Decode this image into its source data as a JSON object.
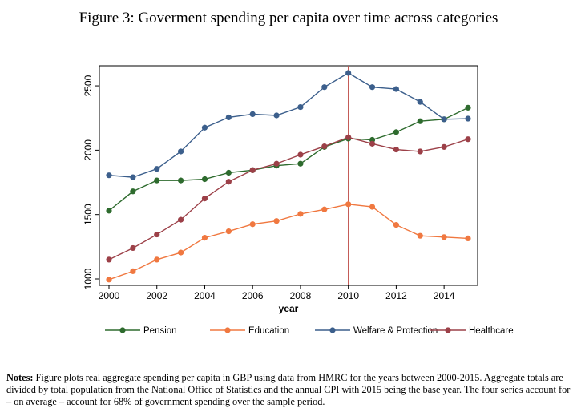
{
  "figure": {
    "title": "Figure 3: Goverment spending per capita over time across categories"
  },
  "notes": {
    "label": "Notes:",
    "text": "Figure plots real aggregate spending per capita in GBP using data from HMRC for the years between 2000-2015. Aggregate totals are divided by total population from the National Office of Statistics and the annual CPI with 2015 being the base year. The four series account for – on average – account for 68% of government spending over the sample period."
  },
  "chart_data": {
    "type": "line",
    "title": "",
    "xlabel": "year",
    "ylabel": "",
    "x": [
      2000,
      2001,
      2002,
      2003,
      2004,
      2005,
      2006,
      2007,
      2008,
      2009,
      2010,
      2011,
      2012,
      2013,
      2014,
      2015
    ],
    "xlim": [
      2000,
      2015
    ],
    "ylim": [
      1000,
      2600
    ],
    "x_ticks": [
      "2000",
      "2002",
      "2004",
      "2006",
      "2008",
      "2010",
      "2012",
      "2014"
    ],
    "y_ticks": [
      "1000",
      "1500",
      "2000",
      "2500"
    ],
    "vertical_line": {
      "x": 2010,
      "color": "#c0504d"
    },
    "legend_position": "bottom",
    "series": [
      {
        "name": "Pension",
        "color": "#2e6b2e",
        "values": [
          1530,
          1680,
          1765,
          1765,
          1775,
          1825,
          1845,
          1880,
          1895,
          2025,
          2090,
          2080,
          2140,
          2225,
          2240,
          2330
        ]
      },
      {
        "name": "Education",
        "color": "#f07840",
        "values": [
          995,
          1060,
          1150,
          1205,
          1320,
          1370,
          1425,
          1450,
          1505,
          1540,
          1580,
          1560,
          1420,
          1335,
          1325,
          1315
        ]
      },
      {
        "name": "Welfare & Protection",
        "color": "#3c5f8c",
        "values": [
          1805,
          1790,
          1855,
          1990,
          2175,
          2255,
          2280,
          2270,
          2335,
          2490,
          2600,
          2490,
          2475,
          2375,
          2240,
          2245
        ]
      },
      {
        "name": "Healthcare",
        "color": "#9c4048",
        "values": [
          1150,
          1240,
          1345,
          1460,
          1625,
          1755,
          1845,
          1895,
          1965,
          2030,
          2100,
          2050,
          2005,
          1990,
          2025,
          2085
        ]
      }
    ]
  }
}
